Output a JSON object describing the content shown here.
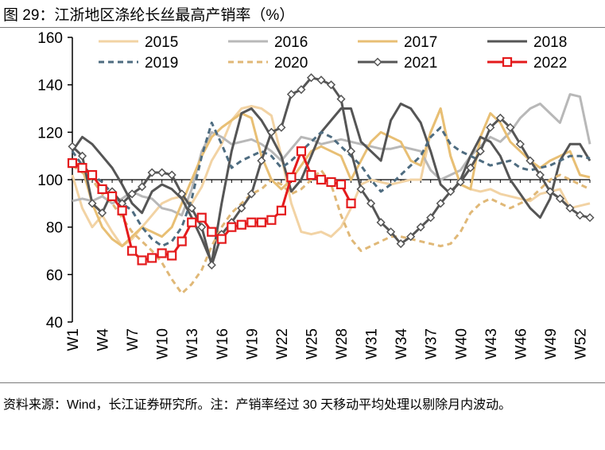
{
  "figure": {
    "title": "图 29：江浙地区涤纶长丝最高产销率（%）",
    "source": "资料来源：Wind，长江证券研究所。注：产销率经过 30 天移动平均处理以剔除月内波动。"
  },
  "chart_data": {
    "type": "line",
    "title": "江浙地区涤纶长丝最高产销率（%）",
    "xlabel": "",
    "ylabel": "",
    "ylim": [
      40,
      160
    ],
    "yticks": [
      40,
      60,
      80,
      100,
      120,
      140,
      160
    ],
    "xlim": [
      1,
      53
    ],
    "xticks": [
      1,
      4,
      7,
      10,
      13,
      16,
      19,
      22,
      25,
      28,
      31,
      34,
      37,
      40,
      43,
      46,
      49,
      52
    ],
    "xtick_labels": [
      "W1",
      "W4",
      "W7",
      "W10",
      "W13",
      "W16",
      "W19",
      "W22",
      "W25",
      "W28",
      "W31",
      "W34",
      "W37",
      "W40",
      "W43",
      "W46",
      "W49",
      "W52"
    ],
    "reference_line": 100,
    "legend_position": "top",
    "series": [
      {
        "name": "2015",
        "color": "#f2d3a4",
        "style": "solid",
        "marker": "none",
        "values": [
          102,
          88,
          80,
          85,
          78,
          72,
          75,
          80,
          85,
          90,
          92,
          93,
          90,
          97,
          108,
          115,
          125,
          130,
          131,
          130,
          127,
          110,
          90,
          78,
          77,
          78,
          76,
          80,
          88,
          98,
          100,
          99,
          98,
          99,
          100,
          100,
          120,
          130,
          110,
          98,
          96,
          95,
          96,
          94,
          93,
          92,
          91,
          94,
          95,
          96,
          88,
          89,
          90
        ]
      },
      {
        "name": "2016",
        "color": "#b8b8b8",
        "style": "solid",
        "marker": "none",
        "values": [
          91,
          92,
          91,
          93,
          90,
          92,
          95,
          93,
          92,
          88,
          87,
          85,
          96,
          112,
          120,
          118,
          115,
          116,
          117,
          115,
          112,
          108,
          113,
          118,
          117,
          115,
          116,
          117,
          116,
          115,
          114,
          113,
          113,
          114,
          113,
          112,
          104,
          100,
          102,
          104,
          110,
          114,
          118,
          116,
          120,
          126,
          130,
          132,
          128,
          124,
          136,
          135,
          115
        ]
      },
      {
        "name": "2017",
        "color": "#e8bf74",
        "style": "solid",
        "marker": "none",
        "values": [
          108,
          105,
          90,
          80,
          75,
          72,
          76,
          80,
          78,
          76,
          80,
          90,
          100,
          110,
          118,
          122,
          125,
          128,
          126,
          110,
          100,
          96,
          100,
          106,
          112,
          114,
          112,
          110,
          100,
          108,
          116,
          120,
          118,
          116,
          108,
          106,
          120,
          130,
          110,
          98,
          96,
          118,
          128,
          124,
          116,
          112,
          108,
          105,
          108,
          110,
          112,
          102,
          101
        ]
      },
      {
        "name": "2018",
        "color": "#555555",
        "style": "solid",
        "marker": "none",
        "values": [
          112,
          118,
          115,
          110,
          105,
          98,
          90,
          86,
          95,
          98,
          96,
          92,
          84,
          75,
          65,
          90,
          112,
          128,
          130,
          125,
          118,
          110,
          95,
          100,
          110,
          120,
          125,
          130,
          130,
          116,
          112,
          108,
          125,
          132,
          130,
          124,
          112,
          98,
          94,
          100,
          110,
          118,
          116,
          110,
          100,
          94,
          88,
          84,
          92,
          108,
          115,
          115,
          108
        ]
      },
      {
        "name": "2019",
        "color": "#4e6c80",
        "style": "dashed",
        "marker": "none",
        "values": [
          112,
          106,
          102,
          99,
          94,
          90,
          87,
          80,
          75,
          72,
          74,
          80,
          92,
          110,
          124,
          115,
          105,
          108,
          110,
          112,
          110,
          105,
          108,
          112,
          116,
          120,
          118,
          114,
          110,
          106,
          100,
          95,
          98,
          102,
          106,
          110,
          118,
          122,
          115,
          112,
          110,
          108,
          106,
          107,
          108,
          105,
          104,
          105,
          106,
          108,
          110,
          110,
          109
        ]
      },
      {
        "name": "2020",
        "color": "#e0b877",
        "style": "dashed",
        "marker": "none",
        "values": [
          106,
          103,
          100,
          94,
          90,
          84,
          78,
          74,
          70,
          65,
          58,
          52,
          56,
          62,
          72,
          80,
          86,
          90,
          94,
          96,
          100,
          98,
          94,
          96,
          100,
          104,
          98,
          85,
          75,
          70,
          72,
          74,
          76,
          76,
          75,
          74,
          73,
          72,
          73,
          78,
          86,
          90,
          92,
          90,
          88,
          90,
          92,
          96,
          100,
          102,
          100,
          98,
          96
        ]
      },
      {
        "name": "2021",
        "color": "#555555",
        "style": "solid",
        "marker": "diamond",
        "values": [
          114,
          110,
          90,
          86,
          95,
          90,
          94,
          97,
          103,
          103,
          102,
          94,
          88,
          80,
          64,
          77,
          82,
          88,
          94,
          108,
          120,
          122,
          136,
          138,
          143,
          142,
          140,
          134,
          112,
          96,
          90,
          82,
          78,
          73,
          76,
          80,
          84,
          90,
          95,
          99,
          105,
          112,
          122,
          126,
          122,
          115,
          108,
          102,
          95,
          92,
          88,
          85,
          84
        ]
      },
      {
        "name": "2022",
        "color": "#e41a1c",
        "style": "solid",
        "marker": "square",
        "values": [
          107,
          105,
          102,
          96,
          93,
          87,
          70,
          66,
          67,
          69,
          68,
          74,
          82,
          84,
          78,
          75,
          80,
          81,
          82,
          82,
          83,
          87,
          101,
          112,
          102,
          100,
          99,
          98,
          90
        ]
      }
    ],
    "series_x_note": "values indexed by week starting at W1"
  },
  "colors": {
    "reference_line": "#000000",
    "axis": "#000000",
    "background": "#ffffff"
  }
}
